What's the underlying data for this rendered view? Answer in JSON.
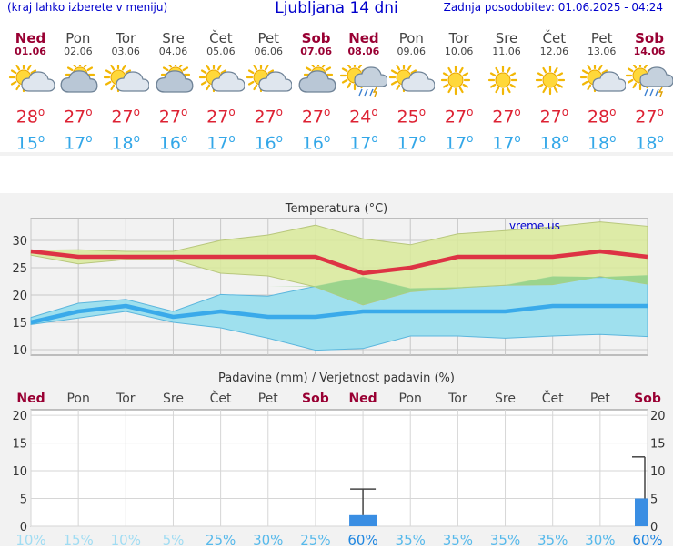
{
  "header": {
    "hint": "(kraj lahko izberete v meniju)",
    "title": "Ljubljana 14 dni",
    "updated": "Zadnja posodobitev: 01.06.2025 - 04:24"
  },
  "days": [
    {
      "name": "Ned",
      "date": "01.06",
      "icon": "partly-sunny-icon",
      "max": "28",
      "min": "15",
      "weekend": true
    },
    {
      "name": "Pon",
      "date": "02.06",
      "icon": "cloudy-sun-icon",
      "max": "27",
      "min": "17",
      "weekend": false
    },
    {
      "name": "Tor",
      "date": "03.06",
      "icon": "partly-sunny-icon",
      "max": "27",
      "min": "18",
      "weekend": false
    },
    {
      "name": "Sre",
      "date": "04.06",
      "icon": "cloudy-sun-icon",
      "max": "27",
      "min": "16",
      "weekend": false
    },
    {
      "name": "Čet",
      "date": "05.06",
      "icon": "partly-sunny-icon",
      "max": "27",
      "min": "17",
      "weekend": false
    },
    {
      "name": "Pet",
      "date": "06.06",
      "icon": "partly-sunny-icon",
      "max": "27",
      "min": "16",
      "weekend": false
    },
    {
      "name": "Sob",
      "date": "07.06",
      "icon": "cloudy-sun-icon",
      "max": "27",
      "min": "16",
      "weekend": true
    },
    {
      "name": "Ned",
      "date": "08.06",
      "icon": "rain-storm-icon",
      "max": "24",
      "min": "17",
      "weekend": true
    },
    {
      "name": "Pon",
      "date": "09.06",
      "icon": "partly-sunny-icon",
      "max": "25",
      "min": "17",
      "weekend": false
    },
    {
      "name": "Tor",
      "date": "10.06",
      "icon": "sunny-icon",
      "max": "27",
      "min": "17",
      "weekend": false
    },
    {
      "name": "Sre",
      "date": "11.06",
      "icon": "sunny-icon",
      "max": "27",
      "min": "17",
      "weekend": false
    },
    {
      "name": "Čet",
      "date": "12.06",
      "icon": "sunny-icon",
      "max": "27",
      "min": "18",
      "weekend": false
    },
    {
      "name": "Pet",
      "date": "13.06",
      "icon": "partly-sunny-icon",
      "max": "28",
      "min": "18",
      "weekend": false
    },
    {
      "name": "Sob",
      "date": "14.06",
      "icon": "rain-storm-icon",
      "max": "27",
      "min": "18",
      "weekend": true
    }
  ],
  "chart_data": [
    {
      "type": "line",
      "title": "Temperatura (°C)",
      "watermark": "vreme.us",
      "ylim": [
        9,
        34
      ],
      "yticks": [
        10,
        15,
        20,
        25,
        30
      ],
      "grid": true,
      "x": [
        "01.06",
        "02.06",
        "03.06",
        "04.06",
        "05.06",
        "06.06",
        "07.06",
        "08.06",
        "09.06",
        "10.06",
        "11.06",
        "12.06",
        "13.06",
        "14.06"
      ],
      "series": [
        {
          "role": "max",
          "values": [
            28,
            27,
            27,
            27,
            27,
            27,
            27,
            24,
            25,
            27,
            27,
            27,
            28,
            27
          ],
          "color": "#dd3344"
        },
        {
          "role": "min",
          "values": [
            15,
            17,
            18,
            16,
            17,
            16,
            16,
            17,
            17,
            17,
            17,
            18,
            18,
            18
          ],
          "color": "#3aaaea"
        }
      ],
      "max_band": {
        "upper": [
          28.2,
          28.3,
          28,
          28,
          30,
          31,
          32.8,
          30.3,
          29.2,
          31.2,
          31.8,
          32.5,
          33.4,
          32.6
        ],
        "lower": [
          27.3,
          25.7,
          26.5,
          26.5,
          24,
          23.5,
          21.5,
          18.2,
          20.6,
          21.3,
          21.8,
          21.9,
          23.4,
          22
        ],
        "color": "#d9ea9a"
      },
      "min_band": {
        "upper": [
          15.9,
          18.5,
          19.2,
          17,
          20.1,
          19.8,
          21.6,
          23.3,
          21.2,
          21.4,
          21.8,
          23.4,
          23.2,
          23.6
        ],
        "lower": [
          14.6,
          15.8,
          17,
          15,
          14,
          12.1,
          9.9,
          10.2,
          12.5,
          12.5,
          12.1,
          12.5,
          12.8,
          12.4
        ],
        "color": "#9fe0ee"
      },
      "overlap_color": "#9bd48c"
    },
    {
      "type": "bar",
      "title": "Padavine (mm) / Verjetnost padavin (%)",
      "categories": [
        "Ned",
        "Pon",
        "Tor",
        "Sre",
        "Čet",
        "Pet",
        "Sob",
        "Ned",
        "Pon",
        "Tor",
        "Sre",
        "Čet",
        "Pet",
        "Sob"
      ],
      "weekend": [
        true,
        false,
        false,
        false,
        false,
        false,
        true,
        true,
        false,
        false,
        false,
        false,
        false,
        true
      ],
      "values": [
        0,
        0,
        0,
        0,
        0,
        0,
        0,
        2,
        0,
        0,
        0,
        0,
        0,
        5
      ],
      "error_upper": [
        null,
        null,
        null,
        null,
        null,
        null,
        null,
        6.7,
        null,
        null,
        null,
        null,
        null,
        12.5
      ],
      "probability": [
        "10%",
        "15%",
        "10%",
        "5%",
        "25%",
        "30%",
        "25%",
        "60%",
        "35%",
        "35%",
        "35%",
        "35%",
        "30%",
        "60%"
      ],
      "probability_colors": [
        "#9fdcf3",
        "#9fdcf3",
        "#9fdcf3",
        "#9fdcf3",
        "#56b9eb",
        "#56b9eb",
        "#56b9eb",
        "#1f86e0",
        "#56b9eb",
        "#56b9eb",
        "#56b9eb",
        "#56b9eb",
        "#56b9eb",
        "#1f86e0"
      ],
      "ylim": [
        0,
        21
      ],
      "yticks": [
        0,
        5,
        10,
        15,
        20
      ],
      "bar_color": "#3a8ee3",
      "grid": true
    }
  ]
}
